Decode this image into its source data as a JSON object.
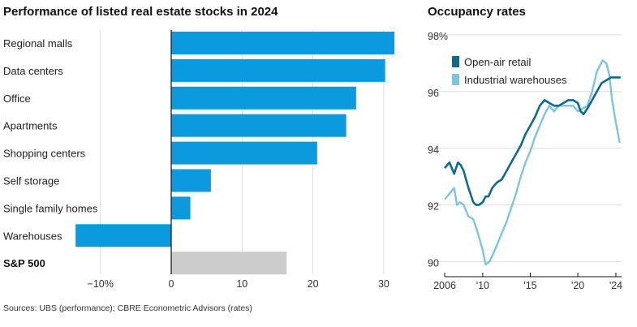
{
  "titles": {
    "left": "Performance of listed real estate stocks in 2024",
    "right": "Occupancy rates"
  },
  "source": "Sources: UBS (performance); CBRE Econometric Advisors (rates)",
  "colors": {
    "bar": "#0C9ADF",
    "benchmark": "#CCCCCC",
    "open_air": "#0E6A8E",
    "industrial": "#7CC4E2",
    "grid": "#DDDDDD"
  },
  "chart_data": [
    {
      "type": "bar",
      "orientation": "horizontal",
      "title": "Performance of listed real estate stocks in 2024",
      "categories": [
        "Regional malls",
        "Data centers",
        "Office",
        "Apartments",
        "Shopping centers",
        "Self storage",
        "Single family homes",
        "Warehouses",
        "S&P 500"
      ],
      "values": [
        31.5,
        30.2,
        26.1,
        24.7,
        20.6,
        5.6,
        2.7,
        -13.5,
        16.3
      ],
      "highlight": [
        "S&P 500"
      ],
      "xlim": [
        -15,
        32
      ],
      "xticks": [
        -10,
        0,
        10,
        20,
        30
      ],
      "xtick_labels": [
        "−10%",
        "0",
        "10",
        "20",
        "30"
      ],
      "grid": true
    },
    {
      "type": "line",
      "title": "Occupancy rates",
      "ylim": [
        89.7,
        98
      ],
      "yticks": [
        90,
        92,
        94,
        96,
        98
      ],
      "ytick_labels": [
        "90",
        "92",
        "94",
        "96",
        "98%"
      ],
      "xlim": [
        2006,
        2024.6
      ],
      "xticks": [
        2006,
        2010,
        2015,
        2020,
        2024
      ],
      "xtick_labels": [
        "2006",
        "'10",
        "'15",
        "'20",
        "'24"
      ],
      "legend": "top-left",
      "series": [
        {
          "name": "Open-air retail",
          "x": [
            2006,
            2006.5,
            2007,
            2007.4,
            2007.7,
            2008,
            2008.5,
            2009,
            2009.3,
            2009.6,
            2010,
            2010.3,
            2010.6,
            2011,
            2011.5,
            2012,
            2012.5,
            2013,
            2013.5,
            2014,
            2014.5,
            2015,
            2015.5,
            2016,
            2016.5,
            2017,
            2017.5,
            2018,
            2018.5,
            2019,
            2019.5,
            2020,
            2020.3,
            2020.6,
            2021,
            2021.5,
            2022,
            2022.5,
            2023,
            2023.5,
            2024,
            2024.5
          ],
          "y": [
            93.3,
            93.5,
            93.1,
            93.5,
            93.4,
            93.2,
            92.6,
            92.1,
            92.0,
            92.0,
            92.1,
            92.3,
            92.3,
            92.6,
            92.8,
            92.9,
            93.2,
            93.5,
            93.8,
            94.1,
            94.5,
            94.8,
            95.1,
            95.5,
            95.7,
            95.6,
            95.5,
            95.5,
            95.6,
            95.7,
            95.7,
            95.6,
            95.3,
            95.2,
            95.4,
            95.7,
            96.0,
            96.3,
            96.4,
            96.5,
            96.5,
            96.5
          ]
        },
        {
          "name": "Industrial warehouses",
          "x": [
            2006,
            2006.5,
            2007,
            2007.3,
            2007.6,
            2008,
            2008.5,
            2009,
            2009.5,
            2010,
            2010.3,
            2010.7,
            2011,
            2011.5,
            2012,
            2012.5,
            2013,
            2013.5,
            2014,
            2014.5,
            2015,
            2015.5,
            2016,
            2016.5,
            2017,
            2017.5,
            2018,
            2018.5,
            2019,
            2019.5,
            2020,
            2020.5,
            2021,
            2021.5,
            2022,
            2022.3,
            2022.6,
            2023,
            2023.3,
            2023.6,
            2024,
            2024.4
          ],
          "y": [
            92.2,
            92.4,
            92.6,
            92.0,
            92.1,
            92.0,
            91.6,
            91.5,
            91.0,
            90.4,
            89.9,
            90.0,
            90.2,
            90.6,
            91.0,
            91.4,
            91.9,
            92.4,
            93.0,
            93.5,
            93.9,
            94.4,
            94.8,
            95.2,
            95.5,
            95.3,
            95.5,
            95.5,
            95.5,
            95.5,
            95.3,
            95.4,
            95.5,
            96.0,
            96.7,
            96.9,
            97.1,
            97.0,
            96.6,
            95.7,
            94.9,
            94.2
          ]
        }
      ]
    }
  ]
}
